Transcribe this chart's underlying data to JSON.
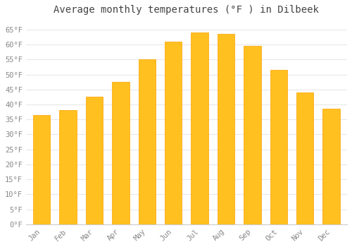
{
  "title": "Average monthly temperatures (°F ) in Dilbeek",
  "months": [
    "Jan",
    "Feb",
    "Mar",
    "Apr",
    "May",
    "Jun",
    "Jul",
    "Aug",
    "Sep",
    "Oct",
    "Nov",
    "Dec"
  ],
  "values": [
    36.5,
    38.0,
    42.5,
    47.5,
    55.0,
    61.0,
    64.0,
    63.5,
    59.5,
    51.5,
    44.0,
    38.5
  ],
  "bar_color_face": "#FFC020",
  "bar_color_edge": "#FFA000",
  "background_color": "#FFFFFF",
  "grid_color": "#E8E8E8",
  "ylim": [
    0,
    68
  ],
  "yticks": [
    0,
    5,
    10,
    15,
    20,
    25,
    30,
    35,
    40,
    45,
    50,
    55,
    60,
    65
  ],
  "tick_label_color": "#888888",
  "title_color": "#444444",
  "title_fontsize": 10,
  "tick_fontsize": 7.5
}
